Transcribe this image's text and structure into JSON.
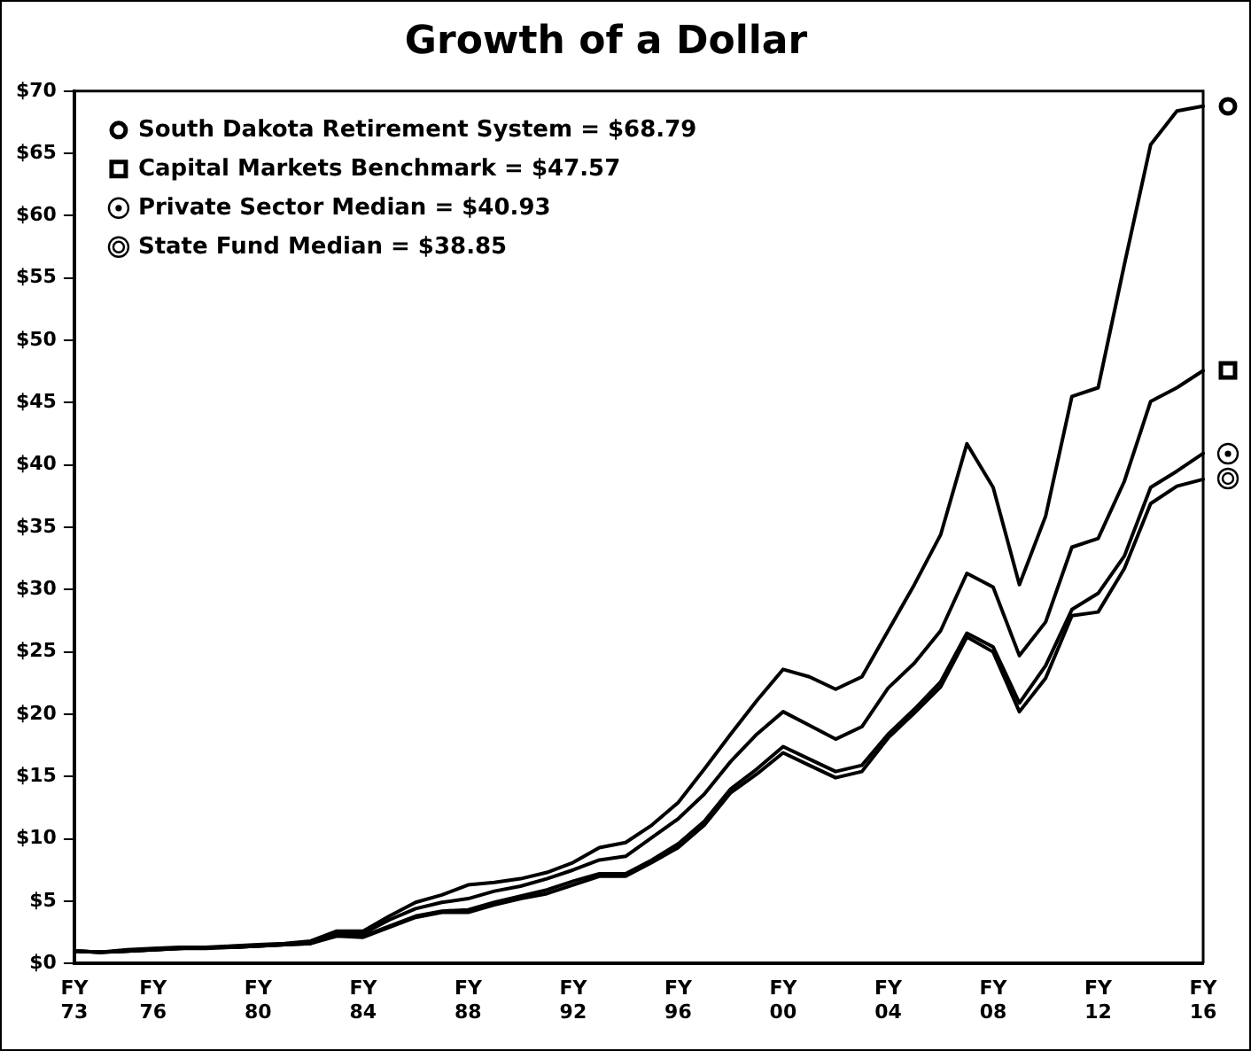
{
  "chart_data": {
    "type": "line",
    "title": "Growth of a Dollar",
    "categories": [
      "FY\n73",
      null,
      null,
      "FY\n76",
      null,
      null,
      null,
      "FY\n80",
      null,
      null,
      null,
      "FY\n84",
      null,
      null,
      null,
      "FY\n88",
      null,
      null,
      null,
      "FY\n92",
      null,
      null,
      null,
      "FY\n96",
      null,
      null,
      null,
      "FY\n00",
      null,
      null,
      null,
      "FY\n04",
      null,
      null,
      null,
      "FY\n08",
      null,
      null,
      null,
      "FY\n12",
      null,
      null,
      null,
      "FY\n16"
    ],
    "series": [
      {
        "name": "South Dakota Retirement System = $68.79",
        "color": "#000000",
        "values": [
          1.0,
          0.9,
          1.1,
          1.2,
          1.3,
          1.3,
          1.4,
          1.5,
          1.6,
          1.8,
          2.6,
          2.6,
          3.8,
          4.9,
          5.5,
          6.3,
          6.5,
          6.8,
          7.3,
          8.1,
          9.3,
          9.7,
          11.1,
          12.9,
          15.6,
          18.4,
          21.1,
          23.6,
          23.0,
          22.0,
          23.0,
          26.7,
          30.4,
          34.4,
          41.7,
          38.2,
          30.4,
          35.9,
          45.5,
          46.2,
          56.1,
          65.7,
          68.4,
          68.79
        ]
      },
      {
        "name": "Capital Markets Benchmark = $47.57",
        "color": "#000000",
        "values": [
          1.0,
          0.9,
          1.0,
          1.1,
          1.2,
          1.3,
          1.3,
          1.4,
          1.5,
          1.7,
          2.4,
          2.4,
          3.5,
          4.4,
          4.9,
          5.2,
          5.8,
          6.2,
          6.8,
          7.5,
          8.3,
          8.6,
          10.1,
          11.6,
          13.6,
          16.2,
          18.4,
          20.2,
          19.1,
          18.0,
          19.0,
          22.1,
          24.1,
          26.7,
          31.3,
          30.2,
          24.7,
          27.4,
          33.4,
          34.1,
          38.7,
          45.1,
          46.2,
          47.57
        ]
      },
      {
        "name": "Private Sector Median = $40.93",
        "color": "#000000",
        "values": [
          1.0,
          0.9,
          1.0,
          1.1,
          1.2,
          1.3,
          1.3,
          1.4,
          1.5,
          1.6,
          2.3,
          2.2,
          3.0,
          3.8,
          4.2,
          4.3,
          4.9,
          5.4,
          5.9,
          6.6,
          7.2,
          7.2,
          8.3,
          9.6,
          11.4,
          14.0,
          15.6,
          17.4,
          16.4,
          15.4,
          15.9,
          18.4,
          20.4,
          22.6,
          26.5,
          25.4,
          20.9,
          23.9,
          28.4,
          29.7,
          32.7,
          38.2,
          39.5,
          40.93
        ]
      },
      {
        "name": "State Fund Median = $38.85",
        "color": "#000000",
        "values": [
          1.0,
          0.9,
          1.0,
          1.1,
          1.2,
          1.2,
          1.3,
          1.4,
          1.5,
          1.6,
          2.2,
          2.1,
          2.9,
          3.7,
          4.1,
          4.1,
          4.7,
          5.2,
          5.6,
          6.3,
          7.0,
          7.0,
          8.1,
          9.3,
          11.1,
          13.7,
          15.2,
          16.9,
          15.9,
          14.9,
          15.4,
          18.1,
          20.1,
          22.2,
          26.2,
          25.0,
          20.2,
          22.9,
          27.9,
          28.2,
          31.7,
          36.9,
          38.3,
          38.85
        ]
      }
    ],
    "ylim": [
      0,
      70
    ],
    "yticks": [
      {
        "value": 0,
        "label": "$0"
      },
      {
        "value": 5,
        "label": "$5"
      },
      {
        "value": 10,
        "label": "$10"
      },
      {
        "value": 15,
        "label": "$15"
      },
      {
        "value": 20,
        "label": "$20"
      },
      {
        "value": 25,
        "label": "$25"
      },
      {
        "value": 30,
        "label": "$30"
      },
      {
        "value": 35,
        "label": "$35"
      },
      {
        "value": 40,
        "label": "$40"
      },
      {
        "value": 45,
        "label": "$45"
      },
      {
        "value": 50,
        "label": "$50"
      },
      {
        "value": 55,
        "label": "$55"
      },
      {
        "value": 60,
        "label": "$60"
      },
      {
        "value": 65,
        "label": "$65"
      },
      {
        "value": 70,
        "label": "$70"
      }
    ],
    "grid": false,
    "legend": "top left",
    "marker": "none",
    "line_style": "solid"
  }
}
